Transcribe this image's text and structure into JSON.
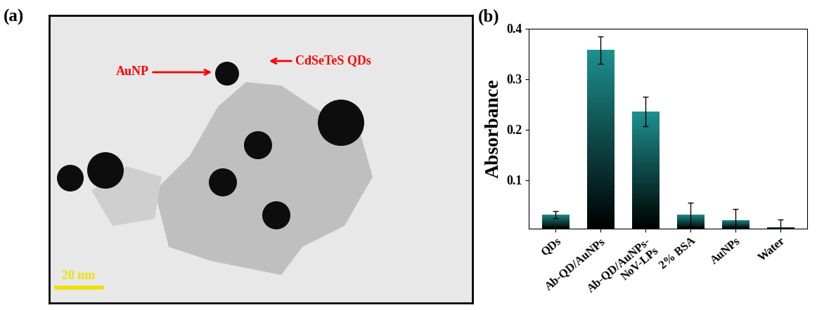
{
  "panel_labels": [
    "(a)",
    "(b)"
  ],
  "image": {
    "annotations": [
      "AuNP",
      "CdSeTeS QDs"
    ],
    "scale_bar": "20 nm"
  },
  "chart_data": {
    "type": "bar",
    "y_label": "Absorbance",
    "categories": [
      "QDs",
      "Ab-QD/AuNPs",
      "Ab-QD/AuNPs-\nNoV-LPs",
      "2% BSA",
      "AuNPs",
      "Water"
    ],
    "values": [
      0.032,
      0.358,
      0.236,
      0.032,
      0.021,
      0.007
    ],
    "errors": [
      0.007,
      0.027,
      0.029,
      0.024,
      0.022,
      0.015
    ],
    "color": "#1e9090",
    "ylim": [
      0.004,
      0.4
    ],
    "yticks": [
      0.1,
      0.2,
      0.3,
      0.4
    ]
  }
}
